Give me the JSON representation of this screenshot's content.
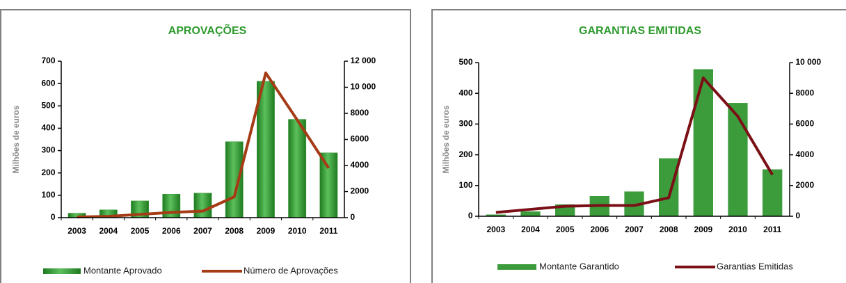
{
  "chart_data": [
    {
      "type": "combo",
      "title": "APROVAÇÕES",
      "y_label": "Milhões de euros",
      "categories": [
        "2003",
        "2004",
        "2005",
        "2006",
        "2007",
        "2008",
        "2009",
        "2010",
        "2011"
      ],
      "series": [
        {
          "name": "Montante Aprovado",
          "type": "bar",
          "axis": "y",
          "color": "#3c9c3c",
          "values": [
            20,
            35,
            75,
            105,
            110,
            340,
            610,
            440,
            290
          ]
        },
        {
          "name": "Número de Aprovações",
          "type": "line",
          "axis": "y2",
          "color": "#a53c16",
          "values": [
            50,
            100,
            250,
            400,
            500,
            1600,
            11100,
            7500,
            3800
          ]
        }
      ],
      "ylim": [
        0,
        700
      ],
      "yticks": [
        0,
        100,
        200,
        300,
        400,
        500,
        600,
        700
      ],
      "y2lim": [
        0,
        12000
      ],
      "y2ticks": [
        0,
        2000,
        4000,
        6000,
        8000,
        {
          "value": 10000,
          "label": "10 000"
        },
        {
          "value": 12000,
          "label": "12 000"
        }
      ]
    },
    {
      "type": "combo",
      "title": "GARANTIAS EMITIDAS",
      "y_label": "Milhões de euros",
      "categories": [
        "2003",
        "2004",
        "2005",
        "2006",
        "2007",
        "2008",
        "2009",
        "2010",
        "2011"
      ],
      "series": [
        {
          "name": "Montante Garantido",
          "type": "bar",
          "axis": "y",
          "color": "#3c9c3c",
          "values": [
            5,
            15,
            38,
            65,
            80,
            188,
            478,
            368,
            152
          ]
        },
        {
          "name": "Garantias Emitidas",
          "type": "line",
          "axis": "y2",
          "color": "#7a1016",
          "values": [
            250,
            450,
            650,
            700,
            700,
            1200,
            9000,
            6500,
            2700
          ]
        }
      ],
      "ylim": [
        0,
        500
      ],
      "yticks": [
        0,
        100,
        200,
        300,
        400,
        500
      ],
      "y2lim": [
        0,
        10000
      ],
      "y2ticks": [
        0,
        2000,
        4000,
        6000,
        8000,
        {
          "value": 10000,
          "label": "10 000"
        }
      ]
    }
  ]
}
